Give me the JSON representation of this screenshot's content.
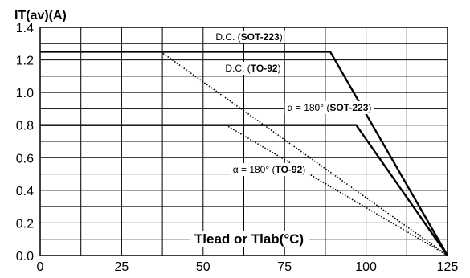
{
  "chart_data": {
    "type": "line",
    "ylabel": "IT(av)(A)",
    "xlabel": "Tlead or Tlab(°C)",
    "xlim": [
      0,
      125
    ],
    "ylim": [
      0,
      1.4
    ],
    "x_ticks": [
      "0",
      "25",
      "50",
      "75",
      "100",
      "125"
    ],
    "y_ticks": [
      "0.0",
      "0.2",
      "0.4",
      "0.6",
      "0.8",
      "1.0",
      "1.2",
      "1.4"
    ],
    "grid": true,
    "series": [
      {
        "name": "D.C. (SOT-223)",
        "style": "solid",
        "x": [
          0,
          89,
          125
        ],
        "y": [
          1.25,
          1.25,
          0
        ]
      },
      {
        "name": "D.C. (TO-92)",
        "style": "solid",
        "x": [
          0,
          97,
          125
        ],
        "y": [
          0.8,
          0.8,
          0
        ]
      },
      {
        "name": "α = 180° (SOT-223)",
        "style": "dotted",
        "x": [
          37,
          125
        ],
        "y": [
          1.25,
          0
        ]
      },
      {
        "name": "α = 180° (TO-92)",
        "style": "dotted",
        "x": [
          57,
          125
        ],
        "y": [
          0.8,
          0
        ]
      }
    ],
    "annotations": [
      {
        "prefix": "D.C. (",
        "bold": "SOT-223",
        "suffix": ")"
      },
      {
        "prefix": "D.C. (",
        "bold": "TO-92",
        "suffix": ")"
      },
      {
        "prefix": "α = 180° (",
        "bold": "SOT-223",
        "suffix": ")"
      },
      {
        "prefix": "α = 180° (",
        "bold": "TO-92",
        "suffix": ")"
      }
    ],
    "colors": {
      "line": "#000000",
      "grid": "#000000",
      "background": "#ffffff"
    }
  }
}
